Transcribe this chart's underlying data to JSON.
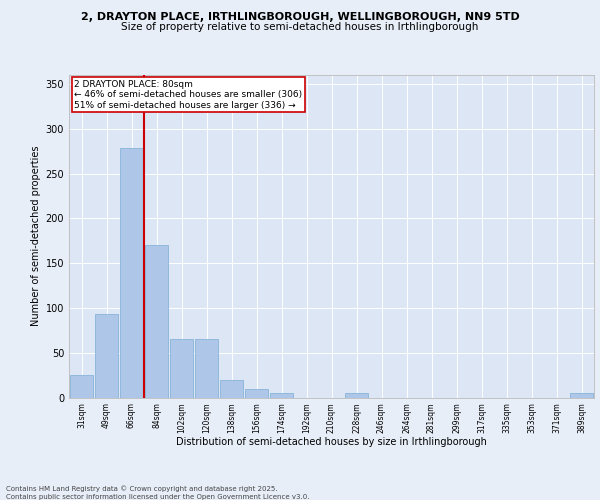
{
  "title_line1": "2, DRAYTON PLACE, IRTHLINGBOROUGH, WELLINGBOROUGH, NN9 5TD",
  "title_line2": "Size of property relative to semi-detached houses in Irthlingborough",
  "xlabel": "Distribution of semi-detached houses by size in Irthlingborough",
  "ylabel": "Number of semi-detached properties",
  "categories": [
    "31sqm",
    "49sqm",
    "66sqm",
    "84sqm",
    "102sqm",
    "120sqm",
    "138sqm",
    "156sqm",
    "174sqm",
    "192sqm",
    "210sqm",
    "228sqm",
    "246sqm",
    "264sqm",
    "281sqm",
    "299sqm",
    "317sqm",
    "335sqm",
    "353sqm",
    "371sqm",
    "389sqm"
  ],
  "values": [
    25,
    93,
    278,
    170,
    65,
    65,
    20,
    10,
    5,
    0,
    0,
    5,
    0,
    0,
    0,
    0,
    0,
    0,
    0,
    0,
    5
  ],
  "bar_color": "#aec6e8",
  "bar_edge_color": "#7aadd4",
  "property_label": "2 DRAYTON PLACE: 80sqm",
  "annotation_line1": "← 46% of semi-detached houses are smaller (306)",
  "annotation_line2": "51% of semi-detached houses are larger (336) →",
  "vline_position": 2.5,
  "vline_color": "#cc0000",
  "annotation_box_edgecolor": "#cc0000",
  "background_color": "#e8eef8",
  "plot_background": "#dce6f5",
  "footer_line1": "Contains HM Land Registry data © Crown copyright and database right 2025.",
  "footer_line2": "Contains public sector information licensed under the Open Government Licence v3.0.",
  "ylim": [
    0,
    360
  ],
  "yticks": [
    0,
    50,
    100,
    150,
    200,
    250,
    300,
    350
  ],
  "title1_fontsize": 8.0,
  "title2_fontsize": 7.5,
  "xlabel_fontsize": 7.0,
  "ylabel_fontsize": 7.0,
  "xtick_fontsize": 5.5,
  "ytick_fontsize": 7.0,
  "annot_fontsize": 6.5,
  "footer_fontsize": 5.0
}
